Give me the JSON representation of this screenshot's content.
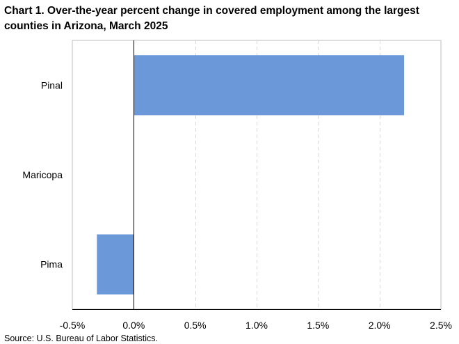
{
  "title": "Chart 1. Over-the-year percent change in covered employment among the largest counties in Arizona, March 2025",
  "source": "Source: U.S. Bureau of Labor Statistics.",
  "colors": {
    "bar": "#6a98d8",
    "grid": "#d9d9d9",
    "axis": "#000000",
    "frame": "#bfbfbf"
  },
  "chart_data": {
    "type": "bar",
    "orientation": "horizontal",
    "title": "Chart 1. Over-the-year percent change in covered employment among the largest counties in Arizona, March 2025",
    "xlabel": "",
    "ylabel": "",
    "categories": [
      "Pinal",
      "Maricopa",
      "Pima"
    ],
    "values": [
      2.2,
      0.0,
      -0.3
    ],
    "unit": "%",
    "xlim": [
      -0.5,
      2.5
    ],
    "xticks": [
      -0.5,
      0.0,
      0.5,
      1.0,
      1.5,
      2.0,
      2.5
    ],
    "xtick_labels": [
      "-0.5%",
      "0.0%",
      "0.5%",
      "1.0%",
      "1.5%",
      "2.0%",
      "2.5%"
    ],
    "grid": "vertical dashed",
    "legend": "none"
  }
}
